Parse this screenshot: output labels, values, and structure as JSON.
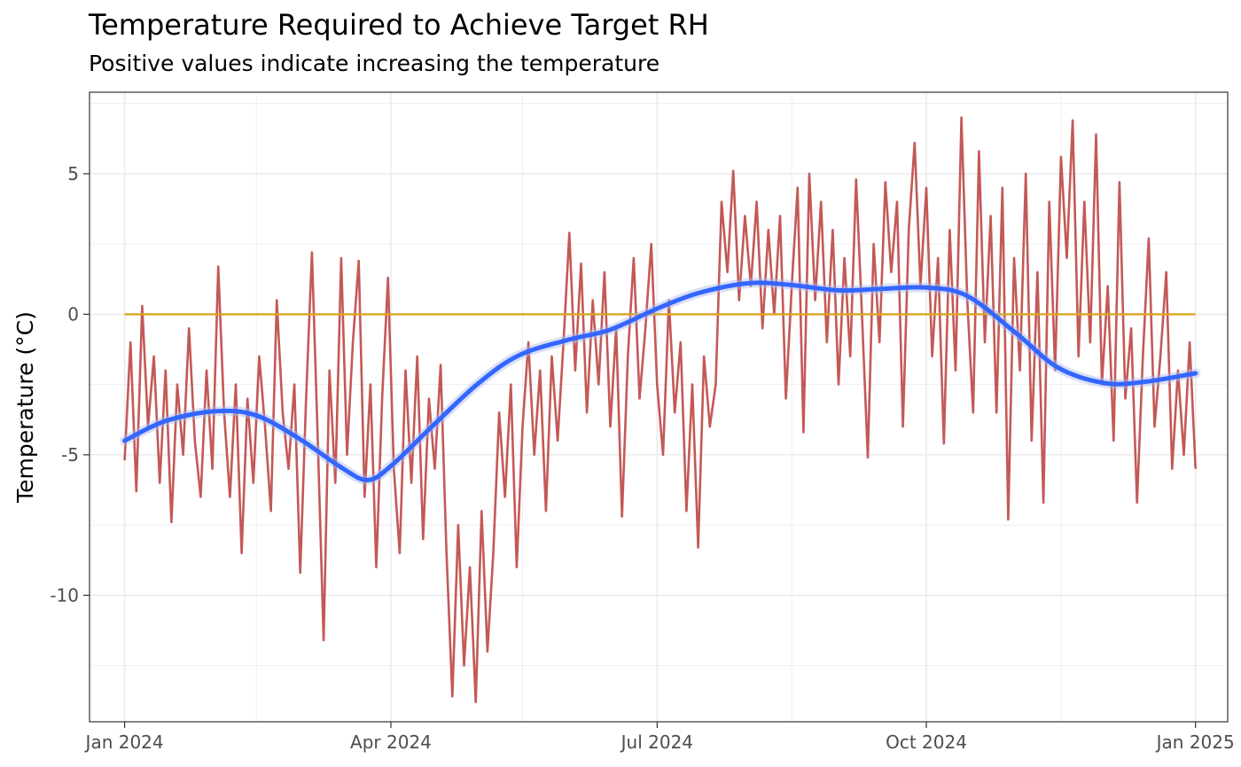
{
  "chart_data": {
    "type": "line",
    "title": "Temperature Required to Achieve Target RH",
    "subtitle": "Positive values indicate increasing the temperature",
    "xlabel": "",
    "ylabel": "Temperature (°C)",
    "xlim": [
      "2023-12-20",
      "2025-01-12"
    ],
    "ylim": [
      -14.5,
      7.9
    ],
    "x_ticks": [
      {
        "date": "2024-01-01",
        "label": "Jan 2024"
      },
      {
        "date": "2024-04-01",
        "label": "Apr 2024"
      },
      {
        "date": "2024-07-01",
        "label": "Jul 2024"
      },
      {
        "date": "2024-10-01",
        "label": "Oct 2024"
      },
      {
        "date": "2025-01-01",
        "label": "Jan 2025"
      }
    ],
    "x_minor_ticks": [
      "2024-02-15",
      "2024-05-16",
      "2024-08-16",
      "2024-11-16"
    ],
    "y_ticks": [
      {
        "value": 5,
        "label": "5"
      },
      {
        "value": 0,
        "label": "0"
      },
      {
        "value": -5,
        "label": "-5"
      },
      {
        "value": -10,
        "label": "-10"
      }
    ],
    "y_minor_ticks": [
      7.5,
      2.5,
      -2.5,
      -7.5,
      -12.5
    ],
    "grid": true,
    "colors": {
      "raw_series": "#C0504D",
      "smooth_series": "#3366FF",
      "reference_line": "#DAA520",
      "grid": "#EBEBEB",
      "panel_border": "#333333",
      "axis_text": "#4D4D4D"
    },
    "series": [
      {
        "role": "raw",
        "points": [
          [
            "2024-01-01",
            -5.2
          ],
          [
            "2024-01-03",
            -1.0
          ],
          [
            "2024-01-05",
            -6.3
          ],
          [
            "2024-01-07",
            0.3
          ],
          [
            "2024-01-09",
            -4.0
          ],
          [
            "2024-01-11",
            -1.5
          ],
          [
            "2024-01-13",
            -6.0
          ],
          [
            "2024-01-15",
            -2.0
          ],
          [
            "2024-01-17",
            -7.4
          ],
          [
            "2024-01-19",
            -2.5
          ],
          [
            "2024-01-21",
            -5.0
          ],
          [
            "2024-01-23",
            -0.5
          ],
          [
            "2024-01-25",
            -4.5
          ],
          [
            "2024-01-27",
            -6.5
          ],
          [
            "2024-01-29",
            -2.0
          ],
          [
            "2024-01-31",
            -5.5
          ],
          [
            "2024-02-02",
            1.7
          ],
          [
            "2024-02-04",
            -3.5
          ],
          [
            "2024-02-06",
            -6.5
          ],
          [
            "2024-02-08",
            -2.5
          ],
          [
            "2024-02-10",
            -8.5
          ],
          [
            "2024-02-12",
            -3.0
          ],
          [
            "2024-02-14",
            -6.0
          ],
          [
            "2024-02-16",
            -1.5
          ],
          [
            "2024-02-18",
            -4.0
          ],
          [
            "2024-02-20",
            -7.0
          ],
          [
            "2024-02-22",
            0.5
          ],
          [
            "2024-02-24",
            -3.5
          ],
          [
            "2024-02-26",
            -5.5
          ],
          [
            "2024-02-28",
            -2.5
          ],
          [
            "2024-03-01",
            -9.2
          ],
          [
            "2024-03-03",
            -3.0
          ],
          [
            "2024-03-05",
            2.2
          ],
          [
            "2024-03-07",
            -4.5
          ],
          [
            "2024-03-09",
            -11.6
          ],
          [
            "2024-03-11",
            -2.0
          ],
          [
            "2024-03-13",
            -6.0
          ],
          [
            "2024-03-15",
            2.0
          ],
          [
            "2024-03-17",
            -5.0
          ],
          [
            "2024-03-19",
            -1.0
          ],
          [
            "2024-03-21",
            1.9
          ],
          [
            "2024-03-23",
            -6.5
          ],
          [
            "2024-03-25",
            -2.5
          ],
          [
            "2024-03-27",
            -9.0
          ],
          [
            "2024-03-29",
            -3.0
          ],
          [
            "2024-03-31",
            1.3
          ],
          [
            "2024-04-02",
            -5.5
          ],
          [
            "2024-04-04",
            -8.5
          ],
          [
            "2024-04-06",
            -2.0
          ],
          [
            "2024-04-08",
            -6.0
          ],
          [
            "2024-04-10",
            -1.5
          ],
          [
            "2024-04-12",
            -8.0
          ],
          [
            "2024-04-14",
            -3.0
          ],
          [
            "2024-04-16",
            -5.5
          ],
          [
            "2024-04-18",
            -1.8
          ],
          [
            "2024-04-20",
            -8.5
          ],
          [
            "2024-04-22",
            -13.6
          ],
          [
            "2024-04-24",
            -7.5
          ],
          [
            "2024-04-26",
            -12.5
          ],
          [
            "2024-04-28",
            -9.0
          ],
          [
            "2024-04-30",
            -13.8
          ],
          [
            "2024-05-02",
            -7.0
          ],
          [
            "2024-05-04",
            -12.0
          ],
          [
            "2024-05-06",
            -8.5
          ],
          [
            "2024-05-08",
            -3.5
          ],
          [
            "2024-05-10",
            -6.5
          ],
          [
            "2024-05-12",
            -2.5
          ],
          [
            "2024-05-14",
            -9.0
          ],
          [
            "2024-05-16",
            -4.0
          ],
          [
            "2024-05-18",
            -1.0
          ],
          [
            "2024-05-20",
            -5.0
          ],
          [
            "2024-05-22",
            -2.0
          ],
          [
            "2024-05-24",
            -7.0
          ],
          [
            "2024-05-26",
            -1.5
          ],
          [
            "2024-05-28",
            -4.5
          ],
          [
            "2024-05-30",
            -1.0
          ],
          [
            "2024-06-01",
            2.9
          ],
          [
            "2024-06-03",
            -2.0
          ],
          [
            "2024-06-05",
            1.8
          ],
          [
            "2024-06-07",
            -3.5
          ],
          [
            "2024-06-09",
            0.5
          ],
          [
            "2024-06-11",
            -2.5
          ],
          [
            "2024-06-13",
            1.5
          ],
          [
            "2024-06-15",
            -4.0
          ],
          [
            "2024-06-17",
            -0.5
          ],
          [
            "2024-06-19",
            -7.2
          ],
          [
            "2024-06-21",
            -1.5
          ],
          [
            "2024-06-23",
            2.0
          ],
          [
            "2024-06-25",
            -3.0
          ],
          [
            "2024-06-27",
            -0.5
          ],
          [
            "2024-06-29",
            2.5
          ],
          [
            "2024-07-01",
            -2.5
          ],
          [
            "2024-07-03",
            -5.0
          ],
          [
            "2024-07-05",
            0.5
          ],
          [
            "2024-07-07",
            -3.5
          ],
          [
            "2024-07-09",
            -1.0
          ],
          [
            "2024-07-11",
            -7.0
          ],
          [
            "2024-07-13",
            -2.5
          ],
          [
            "2024-07-15",
            -8.3
          ],
          [
            "2024-07-17",
            -1.5
          ],
          [
            "2024-07-19",
            -4.0
          ],
          [
            "2024-07-21",
            -2.5
          ],
          [
            "2024-07-23",
            4.0
          ],
          [
            "2024-07-25",
            1.5
          ],
          [
            "2024-07-27",
            5.1
          ],
          [
            "2024-07-29",
            0.5
          ],
          [
            "2024-07-31",
            3.5
          ],
          [
            "2024-08-02",
            1.0
          ],
          [
            "2024-08-04",
            4.0
          ],
          [
            "2024-08-06",
            -0.5
          ],
          [
            "2024-08-08",
            3.0
          ],
          [
            "2024-08-10",
            0.0
          ],
          [
            "2024-08-12",
            3.5
          ],
          [
            "2024-08-14",
            -3.0
          ],
          [
            "2024-08-16",
            1.0
          ],
          [
            "2024-08-18",
            4.5
          ],
          [
            "2024-08-20",
            -4.2
          ],
          [
            "2024-08-22",
            5.0
          ],
          [
            "2024-08-24",
            0.5
          ],
          [
            "2024-08-26",
            4.0
          ],
          [
            "2024-08-28",
            -1.0
          ],
          [
            "2024-08-30",
            3.0
          ],
          [
            "2024-09-01",
            -2.5
          ],
          [
            "2024-09-03",
            2.0
          ],
          [
            "2024-09-05",
            -1.5
          ],
          [
            "2024-09-07",
            4.8
          ],
          [
            "2024-09-09",
            0.0
          ],
          [
            "2024-09-11",
            -5.1
          ],
          [
            "2024-09-13",
            2.5
          ],
          [
            "2024-09-15",
            -1.0
          ],
          [
            "2024-09-17",
            4.7
          ],
          [
            "2024-09-19",
            1.5
          ],
          [
            "2024-09-21",
            4.0
          ],
          [
            "2024-09-23",
            -4.0
          ],
          [
            "2024-09-25",
            3.0
          ],
          [
            "2024-09-27",
            6.1
          ],
          [
            "2024-09-29",
            1.0
          ],
          [
            "2024-10-01",
            4.5
          ],
          [
            "2024-10-03",
            -1.5
          ],
          [
            "2024-10-05",
            2.0
          ],
          [
            "2024-10-07",
            -4.6
          ],
          [
            "2024-10-09",
            3.0
          ],
          [
            "2024-10-11",
            -2.0
          ],
          [
            "2024-10-13",
            7.0
          ],
          [
            "2024-10-15",
            0.5
          ],
          [
            "2024-10-17",
            -3.5
          ],
          [
            "2024-10-19",
            5.8
          ],
          [
            "2024-10-21",
            -1.0
          ],
          [
            "2024-10-23",
            3.5
          ],
          [
            "2024-10-25",
            -3.5
          ],
          [
            "2024-10-27",
            4.5
          ],
          [
            "2024-10-29",
            -7.3
          ],
          [
            "2024-10-31",
            2.0
          ],
          [
            "2024-11-02",
            -2.0
          ],
          [
            "2024-11-04",
            5.0
          ],
          [
            "2024-11-06",
            -4.5
          ],
          [
            "2024-11-08",
            1.5
          ],
          [
            "2024-11-10",
            -6.7
          ],
          [
            "2024-11-12",
            4.0
          ],
          [
            "2024-11-14",
            -2.0
          ],
          [
            "2024-11-16",
            5.6
          ],
          [
            "2024-11-18",
            2.0
          ],
          [
            "2024-11-20",
            6.9
          ],
          [
            "2024-11-22",
            -1.5
          ],
          [
            "2024-11-24",
            4.0
          ],
          [
            "2024-11-26",
            -1.0
          ],
          [
            "2024-11-28",
            6.4
          ],
          [
            "2024-11-30",
            -2.5
          ],
          [
            "2024-12-02",
            1.0
          ],
          [
            "2024-12-04",
            -4.5
          ],
          [
            "2024-12-06",
            4.7
          ],
          [
            "2024-12-08",
            -3.0
          ],
          [
            "2024-12-10",
            -0.5
          ],
          [
            "2024-12-12",
            -6.7
          ],
          [
            "2024-12-14",
            -1.5
          ],
          [
            "2024-12-16",
            2.7
          ],
          [
            "2024-12-18",
            -4.0
          ],
          [
            "2024-12-20",
            -1.5
          ],
          [
            "2024-12-22",
            1.5
          ],
          [
            "2024-12-24",
            -5.5
          ],
          [
            "2024-12-26",
            -2.0
          ],
          [
            "2024-12-28",
            -5.0
          ],
          [
            "2024-12-30",
            -1.0
          ],
          [
            "2025-01-01",
            -5.5
          ]
        ]
      },
      {
        "role": "smooth",
        "points": [
          [
            "2024-01-01",
            -4.5
          ],
          [
            "2024-01-15",
            -3.8
          ],
          [
            "2024-02-01",
            -3.45
          ],
          [
            "2024-02-15",
            -3.6
          ],
          [
            "2024-03-01",
            -4.45
          ],
          [
            "2024-03-15",
            -5.45
          ],
          [
            "2024-03-24",
            -5.9
          ],
          [
            "2024-04-01",
            -5.4
          ],
          [
            "2024-04-15",
            -4.0
          ],
          [
            "2024-05-01",
            -2.45
          ],
          [
            "2024-05-15",
            -1.45
          ],
          [
            "2024-06-01",
            -0.9
          ],
          [
            "2024-06-15",
            -0.55
          ],
          [
            "2024-07-01",
            0.2
          ],
          [
            "2024-07-15",
            0.75
          ],
          [
            "2024-08-01",
            1.1
          ],
          [
            "2024-08-15",
            1.05
          ],
          [
            "2024-09-01",
            0.85
          ],
          [
            "2024-09-15",
            0.9
          ],
          [
            "2024-10-01",
            0.95
          ],
          [
            "2024-10-15",
            0.65
          ],
          [
            "2024-11-01",
            -0.7
          ],
          [
            "2024-11-15",
            -1.9
          ],
          [
            "2024-12-01",
            -2.45
          ],
          [
            "2024-12-15",
            -2.4
          ],
          [
            "2025-01-01",
            -2.1
          ]
        ]
      },
      {
        "role": "reference",
        "points": [
          [
            "2024-01-01",
            0
          ],
          [
            "2025-01-01",
            0
          ]
        ]
      }
    ]
  }
}
